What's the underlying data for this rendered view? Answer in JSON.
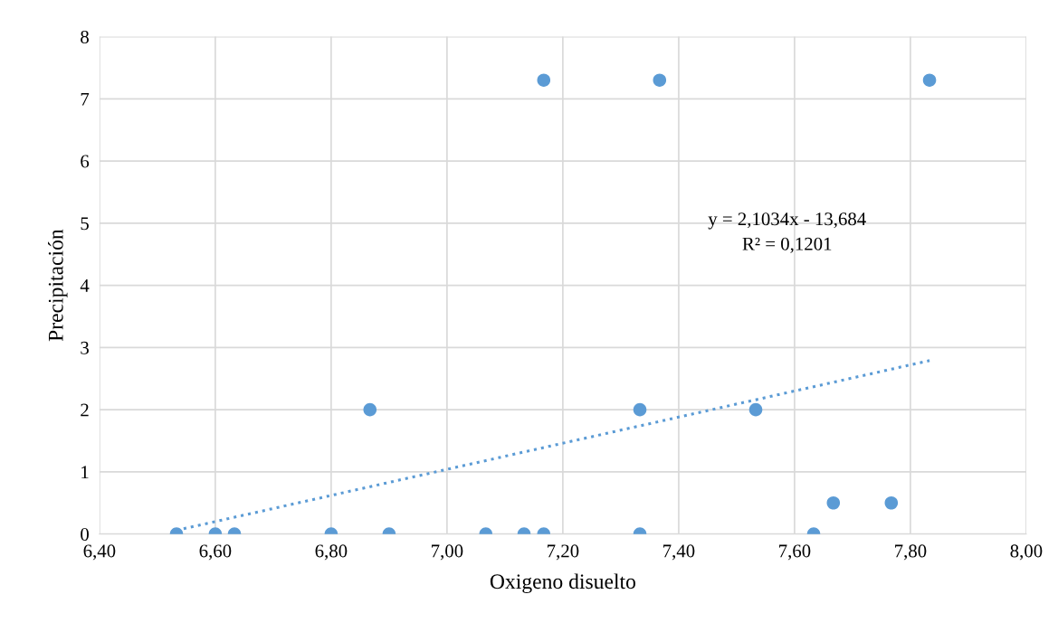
{
  "chart_data": {
    "type": "scatter",
    "xlabel": "Oxigeno disuelto",
    "ylabel": "Precipitación",
    "x": [
      6.533,
      6.6,
      6.633,
      6.8,
      6.867,
      6.9,
      7.067,
      7.133,
      7.167,
      7.167,
      7.333,
      7.333,
      7.367,
      7.533,
      7.633,
      7.667,
      7.767,
      7.833
    ],
    "series": [
      {
        "color": "#5b9bd5",
        "marker": "circle",
        "values": [
          0,
          0,
          0,
          0,
          2,
          0,
          0,
          0,
          0,
          7.3,
          0,
          2,
          7.3,
          2,
          0,
          0.5,
          0.5,
          7.3
        ]
      },
      {
        "type": "line",
        "color": "#5b9bd5",
        "line_style": "dotted",
        "marker": "none",
        "x": [
          6.533,
          7.833
        ],
        "values": [
          0.06,
          2.79
        ]
      }
    ],
    "annotations": [
      "y = 2,1034x - 13,684",
      "R² = 0,1201"
    ],
    "xlim": [
      6.4,
      8.0
    ],
    "xticks": [
      {
        "value": 6.4,
        "label": "6,40"
      },
      {
        "value": 6.6,
        "label": "6,60"
      },
      {
        "value": 6.8,
        "label": "6,80"
      },
      {
        "value": 7.0,
        "label": "7,00"
      },
      {
        "value": 7.2,
        "label": "7,20"
      },
      {
        "value": 7.4,
        "label": "7,40"
      },
      {
        "value": 7.6,
        "label": "7,60"
      },
      {
        "value": 7.8,
        "label": "7,80"
      },
      {
        "value": 8.0,
        "label": "8,00"
      }
    ],
    "ylim": [
      0,
      8
    ],
    "yticks": [
      0,
      1,
      2,
      3,
      4,
      5,
      6,
      7,
      8
    ],
    "grid": true,
    "legend": false
  }
}
